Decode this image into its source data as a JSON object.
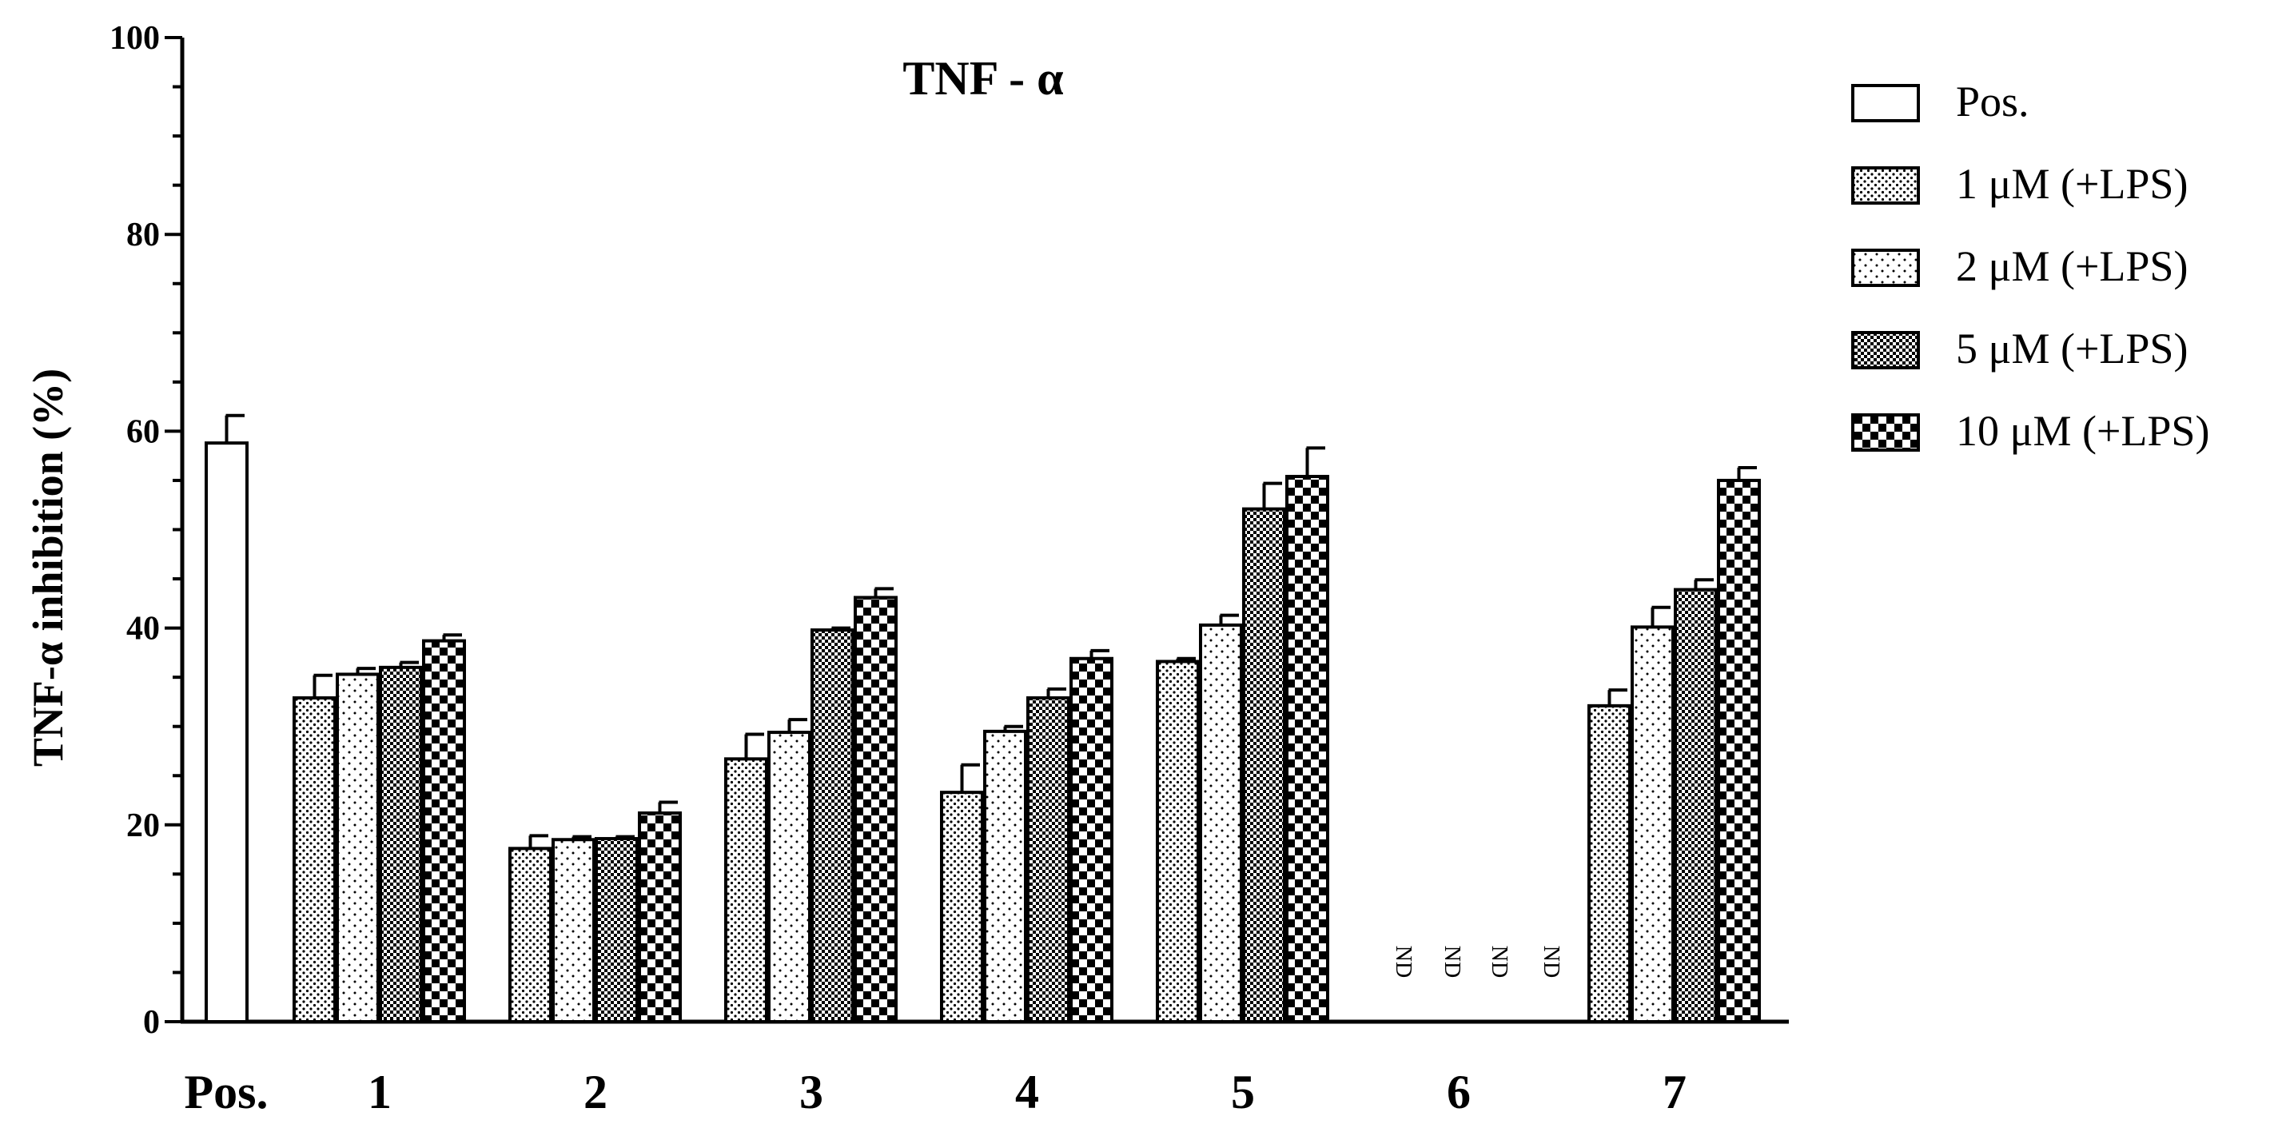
{
  "chart_data": {
    "type": "bar",
    "title": "TNF - α",
    "ylabel": "TNF-α inhibition (%)",
    "xlabel": "",
    "ylim": [
      0,
      100
    ],
    "yticks": [
      "0",
      "20",
      "40",
      "60",
      "80",
      "100"
    ],
    "categories": [
      "Pos.",
      "1",
      "2",
      "3",
      "4",
      "5",
      "6",
      "7"
    ],
    "legend_position": "top-right",
    "series": [
      {
        "name": "Pos.",
        "pattern": "white",
        "values": [
          58.8,
          null,
          null,
          null,
          null,
          null,
          null,
          null
        ],
        "errors": [
          2.8,
          null,
          null,
          null,
          null,
          null,
          null,
          null
        ]
      },
      {
        "name": "1  μM (+LPS)",
        "pattern": "dots-dense",
        "values": [
          null,
          32.9,
          17.6,
          26.7,
          23.3,
          36.6,
          null,
          32.1
        ],
        "errors": [
          null,
          2.3,
          1.3,
          2.5,
          2.8,
          0.3,
          null,
          1.6
        ]
      },
      {
        "name": "2  μM (+LPS)",
        "pattern": "dots-sparse",
        "values": [
          null,
          35.3,
          18.5,
          29.4,
          29.5,
          40.3,
          null,
          40.1
        ],
        "errors": [
          null,
          0.6,
          0.3,
          1.3,
          0.5,
          1.0,
          null,
          2.0
        ]
      },
      {
        "name": "5  μM (+LPS)",
        "pattern": "crosshatch-fine",
        "values": [
          null,
          36.0,
          18.6,
          39.8,
          32.9,
          52.1,
          null,
          43.9
        ],
        "errors": [
          null,
          0.5,
          0.2,
          0.2,
          0.9,
          2.6,
          null,
          1.0
        ]
      },
      {
        "name": "10 μM (+LPS)",
        "pattern": "checker",
        "values": [
          null,
          38.7,
          21.2,
          43.1,
          36.9,
          55.4,
          null,
          55.0
        ],
        "errors": [
          null,
          0.6,
          1.1,
          0.9,
          0.8,
          2.9,
          null,
          1.3
        ]
      }
    ],
    "annotations": [
      {
        "category": "6",
        "series_index": [
          1,
          2,
          3,
          4
        ],
        "text": "ND"
      }
    ]
  },
  "colors": {
    "ink": "#000000",
    "paper": "#ffffff"
  }
}
